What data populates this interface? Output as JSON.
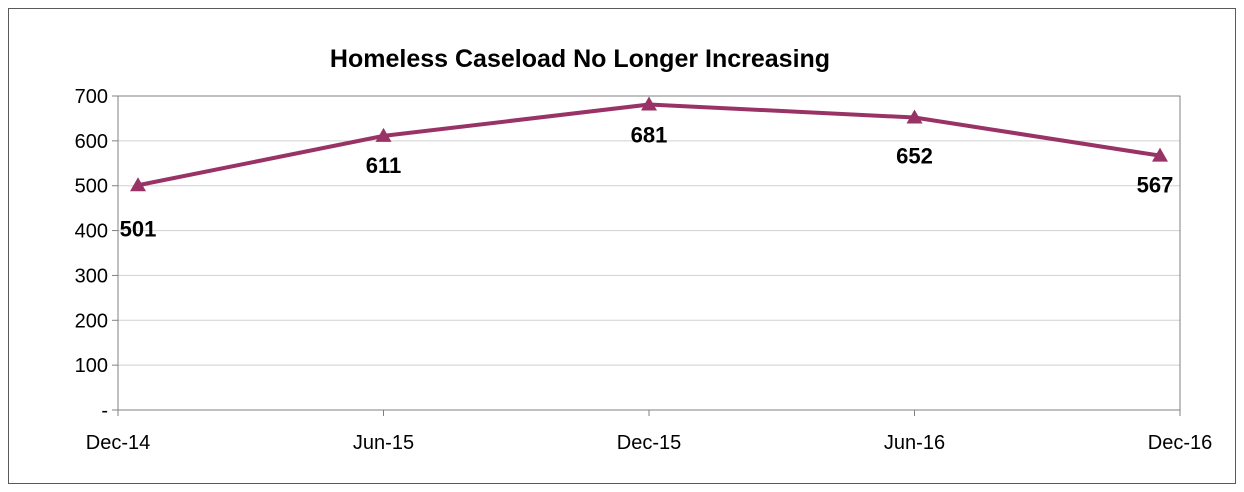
{
  "chart_data": {
    "type": "line",
    "title": "Homeless Caseload No Longer Increasing",
    "categories": [
      "Dec-14",
      "Jun-15",
      "Dec-15",
      "Jun-16",
      "Dec-16"
    ],
    "series": [
      {
        "values": [
          501,
          611,
          681,
          652,
          567
        ],
        "color": "#993366",
        "marker": "triangle"
      }
    ],
    "data_labels": [
      "501",
      "611",
      "681",
      "652",
      "567"
    ],
    "y_ticks": [
      {
        "value": 0,
        "label": "-"
      },
      {
        "value": 100,
        "label": "100"
      },
      {
        "value": 200,
        "label": "200"
      },
      {
        "value": 300,
        "label": "300"
      },
      {
        "value": 400,
        "label": "400"
      },
      {
        "value": 500,
        "label": "500"
      },
      {
        "value": 600,
        "label": "600"
      },
      {
        "value": 700,
        "label": "700"
      }
    ],
    "ylim": [
      0,
      700
    ],
    "grid": true,
    "legend": "none"
  }
}
